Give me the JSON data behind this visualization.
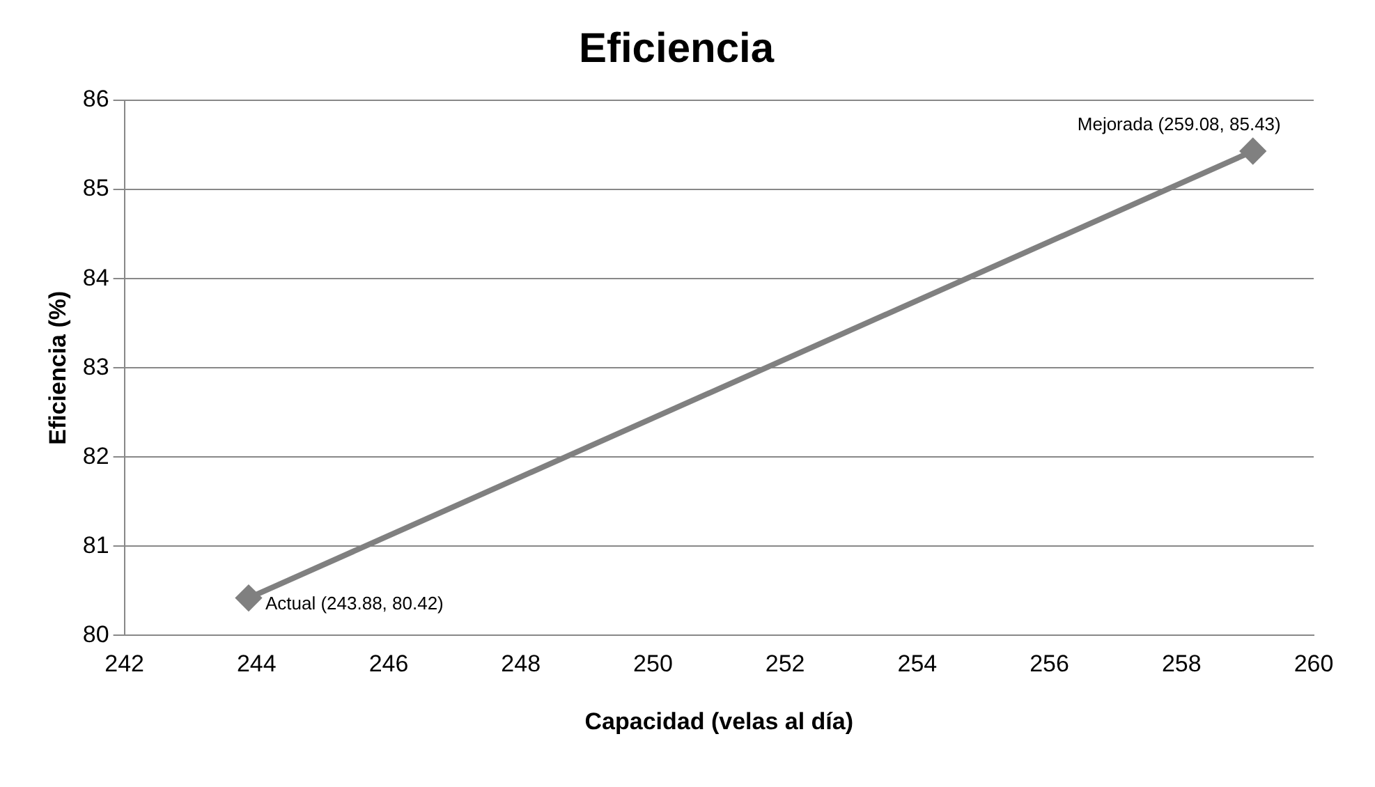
{
  "chart_data": {
    "type": "line",
    "title": "Eficiencia",
    "xlabel": "Capacidad (velas al día)",
    "ylabel": "Eficiencia (%)",
    "x": [
      243.88,
      259.08
    ],
    "series": [
      {
        "color": "#808080",
        "values": [
          80.42,
          85.43
        ]
      }
    ],
    "xlim": [
      242,
      260
    ],
    "xticks": [
      242,
      244,
      246,
      248,
      250,
      252,
      254,
      256,
      258,
      260
    ],
    "ylim": [
      80,
      86
    ],
    "yticks": [
      80,
      81,
      82,
      83,
      84,
      85,
      86
    ],
    "grid": "y",
    "legend": false,
    "marker": "diamond",
    "line_style": "solid",
    "annotations": [
      {
        "text": "Actual (243.88, 80.42)",
        "x": 243.88,
        "y": 80.42
      },
      {
        "text": "Mejorada (259.08, 85.43)",
        "x": 259.08,
        "y": 85.43
      }
    ]
  }
}
